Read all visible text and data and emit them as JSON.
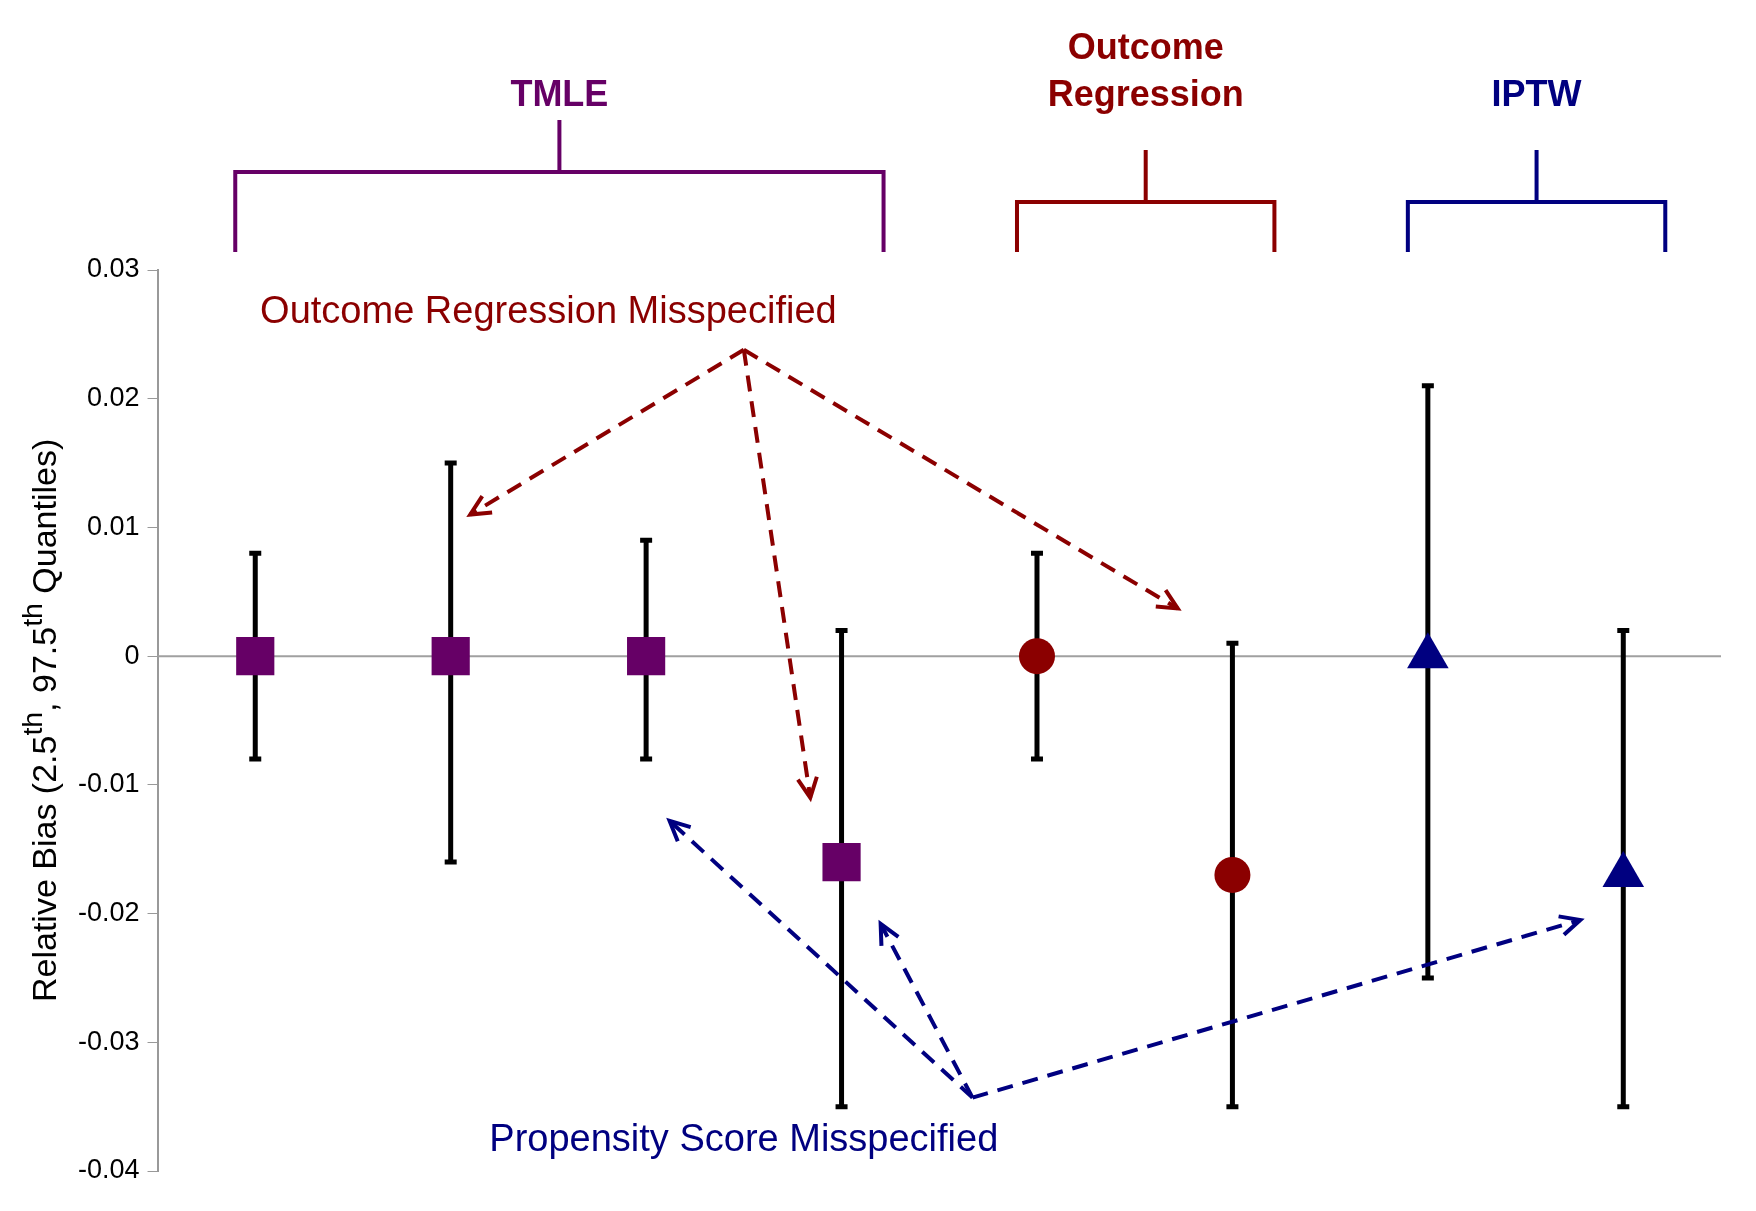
{
  "chart_data": {
    "type": "scatter",
    "ylabel": "Relative Bias (2.5$^{th}$, 97.5$^{th}$ Quantiles)",
    "categories": [
      null,
      null,
      null,
      null,
      null,
      null,
      null,
      null
    ],
    "series": [
      {
        "name": "TMLE",
        "color": "#660066",
        "marker": "square",
        "values": [
          0,
          0,
          0,
          -0.016,
          null,
          null,
          null,
          null
        ],
        "errors": [
          [
            -0.008,
            0.008
          ],
          [
            -0.016,
            0.015
          ],
          [
            -0.008,
            0.009
          ],
          [
            -0.035,
            0.002
          ],
          null,
          null,
          null,
          null
        ]
      },
      {
        "name": "Outcome Regression",
        "color": "#8b0000",
        "marker": "circle",
        "values": [
          null,
          null,
          null,
          null,
          0,
          -0.017,
          null,
          null
        ],
        "errors": [
          null,
          null,
          null,
          null,
          [
            -0.008,
            0.008
          ],
          [
            -0.035,
            0.001
          ],
          null,
          null
        ]
      },
      {
        "name": "IPTW",
        "color": "#000080",
        "marker": "triangle",
        "values": [
          null,
          null,
          null,
          null,
          null,
          null,
          0,
          -0.017
        ],
        "errors": [
          null,
          null,
          null,
          null,
          null,
          null,
          [
            -0.025,
            0.021
          ],
          [
            -0.035,
            0.002
          ]
        ]
      }
    ],
    "ylim": [
      -0.04,
      0.03
    ],
    "yticks": [
      -0.04,
      -0.03,
      -0.02,
      -0.01,
      0,
      0.01,
      0.02,
      0.03
    ],
    "ref_lines": [
      {
        "axis": "y",
        "value": 0,
        "color": "#a0a0a0"
      }
    ],
    "annotations": [
      "Outcome Regression Misspecified",
      "Propensity Score Misspecified"
    ],
    "tick_labels": "y",
    "legend": false,
    "grid": false
  }
}
